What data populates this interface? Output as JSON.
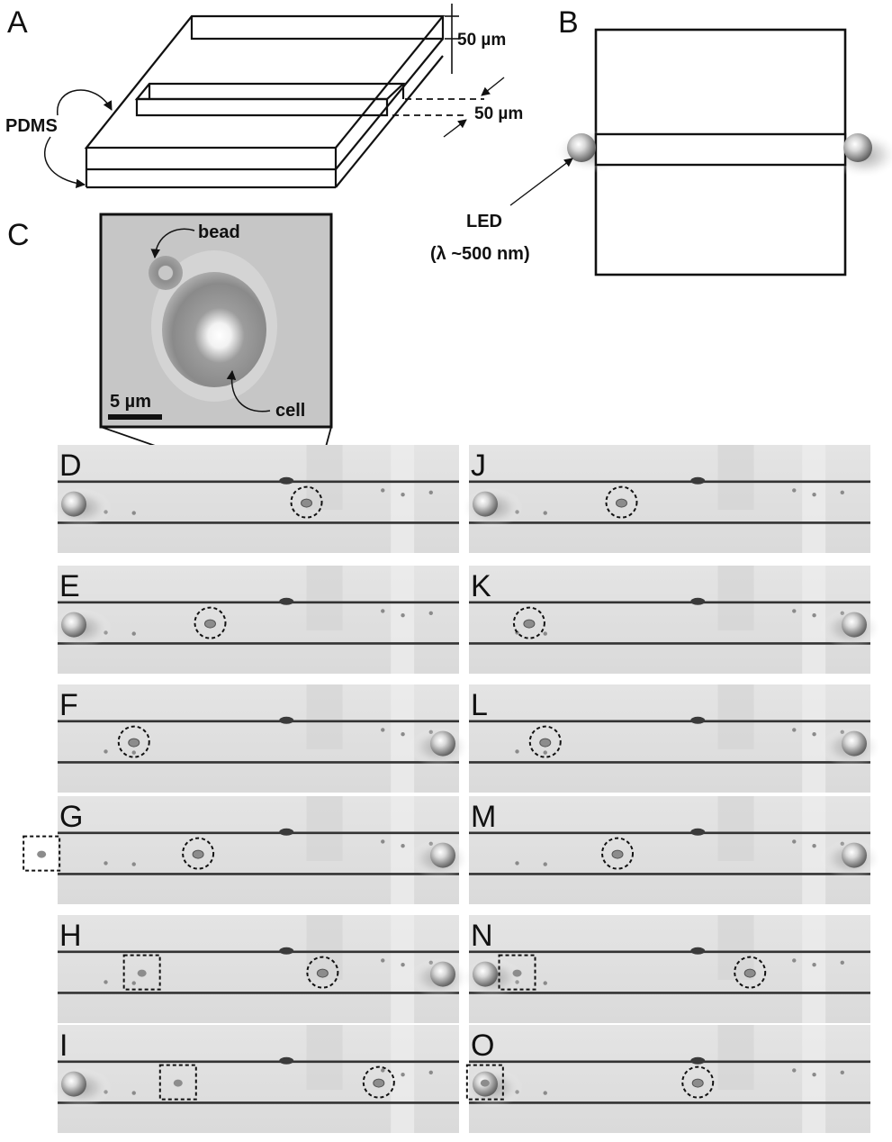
{
  "panel_labels": {
    "A": "A",
    "B": "B",
    "C": "C",
    "left": [
      "D",
      "E",
      "F",
      "G",
      "H",
      "I"
    ],
    "right": [
      "J",
      "K",
      "L",
      "M",
      "N",
      "O"
    ]
  },
  "panel_a": {
    "height_label": "50 µm",
    "width_label": "50 µm",
    "material_label": "PDMS"
  },
  "panel_b": {
    "led_label": "LED",
    "wavelength_label": "(λ ~500 nm)"
  },
  "panel_c": {
    "bead_label": "bead",
    "cell_label": "cell",
    "scale_label": "5 µm"
  },
  "frames_left": [
    {
      "label": "D",
      "led": "left",
      "circle": 0.62,
      "square": null
    },
    {
      "label": "E",
      "led": "left",
      "circle": 0.38,
      "square": null
    },
    {
      "label": "F",
      "led": "right",
      "circle": 0.19,
      "square": null
    },
    {
      "label": "G",
      "led": "right",
      "circle": 0.35,
      "square": -0.04
    },
    {
      "label": "H",
      "led": "right",
      "circle": 0.66,
      "square": 0.21
    },
    {
      "label": "I",
      "led": "left",
      "circle": 0.8,
      "square": 0.3
    }
  ],
  "frames_right": [
    {
      "label": "J",
      "led": "left",
      "circle": 0.38,
      "square": null
    },
    {
      "label": "K",
      "led": "right",
      "circle": 0.15,
      "square": null
    },
    {
      "label": "L",
      "led": "right",
      "circle": 0.19,
      "square": null
    },
    {
      "label": "M",
      "led": "right",
      "circle": 0.37,
      "square": null
    },
    {
      "label": "N",
      "led": "left",
      "circle": 0.7,
      "square": 0.12
    },
    {
      "label": "O",
      "led": "left",
      "circle": 0.57,
      "square": 0.04
    }
  ]
}
